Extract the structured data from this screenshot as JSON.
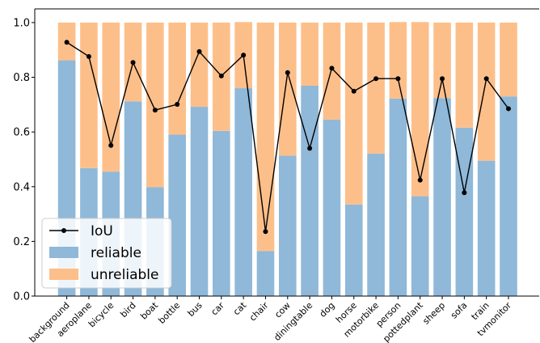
{
  "chart_data": {
    "type": "bar",
    "stacked": true,
    "categories": [
      "background",
      "aeroplane",
      "bicycle",
      "bird",
      "boat",
      "bottle",
      "bus",
      "car",
      "cat",
      "chair",
      "cow",
      "diningtable",
      "dog",
      "horse",
      "motorbike",
      "person",
      "pottedplant",
      "sheep",
      "sofa",
      "train",
      "tvmonitor"
    ],
    "series": [
      {
        "name": "reliable",
        "kind": "bar",
        "color": "#8fb8d9",
        "values": [
          0.862,
          0.468,
          0.455,
          0.712,
          0.398,
          0.59,
          0.692,
          0.604,
          0.76,
          0.165,
          0.513,
          0.769,
          0.645,
          0.335,
          0.521,
          0.722,
          0.365,
          0.724,
          0.616,
          0.495,
          0.73
        ]
      },
      {
        "name": "unreliable",
        "kind": "bar",
        "color": "#fdbf8a",
        "values": [
          0.138,
          0.532,
          0.545,
          0.288,
          0.602,
          0.41,
          0.308,
          0.396,
          0.242,
          0.835,
          0.487,
          0.231,
          0.355,
          0.665,
          0.479,
          0.28,
          0.637,
          0.276,
          0.384,
          0.505,
          0.27
        ]
      },
      {
        "name": "IoU",
        "kind": "line",
        "color": "#000000",
        "values": [
          0.928,
          0.876,
          0.551,
          0.854,
          0.68,
          0.701,
          0.894,
          0.805,
          0.881,
          0.236,
          0.817,
          0.54,
          0.833,
          0.749,
          0.795,
          0.795,
          0.424,
          0.795,
          0.378,
          0.795,
          0.685
        ]
      }
    ],
    "yticks": [
      "0.0",
      "0.2",
      "0.4",
      "0.6",
      "0.8",
      "1.0"
    ],
    "ylim": [
      0,
      1.05
    ],
    "title": "",
    "xlabel": "",
    "ylabel": "",
    "legend_position": "lower-left",
    "grid": false
  }
}
